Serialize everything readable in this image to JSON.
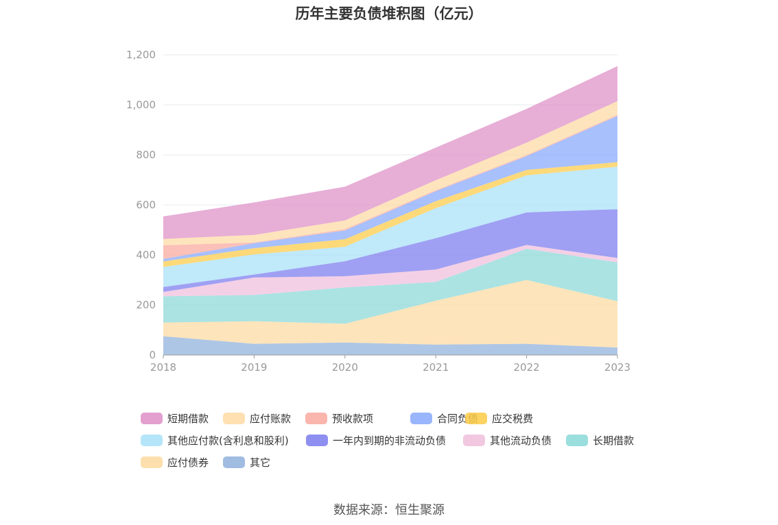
{
  "chart_data": {
    "type": "area",
    "stacked": true,
    "title": "历年主要负债堆积图（亿元）",
    "categories": [
      "2018",
      "2019",
      "2020",
      "2021",
      "2022",
      "2023"
    ],
    "ylim": [
      0,
      1200
    ],
    "yticks": [
      0,
      200,
      400,
      600,
      800,
      1000,
      1200
    ],
    "ytick_labels": [
      "0",
      "200",
      "400",
      "600",
      "800",
      "1,000",
      "1,200"
    ],
    "grid": true,
    "legend_position": "bottom",
    "series": [
      {
        "name": "其它",
        "color": "#8fb0dc",
        "values": [
          75,
          45,
          50,
          42,
          45,
          30
        ]
      },
      {
        "name": "应付债券",
        "color": "#fdd9a0",
        "values": [
          55,
          90,
          75,
          175,
          255,
          185
        ]
      },
      {
        "name": "长期借款",
        "color": "#8ad8d8",
        "values": [
          105,
          105,
          145,
          75,
          125,
          155
        ]
      },
      {
        "name": "其他流动负债",
        "color": "#f0bedc",
        "values": [
          17,
          70,
          45,
          50,
          15,
          18
        ]
      },
      {
        "name": "一年内到期的非流动负债",
        "color": "#7a7bef",
        "values": [
          20,
          12,
          60,
          125,
          130,
          195
        ]
      },
      {
        "name": "其他应付款(含利息和股利)",
        "color": "#a8e0f8",
        "values": [
          80,
          80,
          58,
          120,
          148,
          170
        ]
      },
      {
        "name": "应交税费",
        "color": "#fccb45",
        "values": [
          22,
          25,
          30,
          28,
          22,
          18
        ]
      },
      {
        "name": "合同负债",
        "color": "#87a8fb",
        "values": [
          10,
          20,
          35,
          40,
          55,
          185
        ]
      },
      {
        "name": "预收款项",
        "color": "#f9a89d",
        "values": [
          55,
          3,
          5,
          4,
          4,
          4
        ]
      },
      {
        "name": "应付账款",
        "color": "#fedaa3",
        "values": [
          25,
          30,
          35,
          40,
          50,
          55
        ]
      },
      {
        "name": "短期借款",
        "color": "#de8fc6",
        "values": [
          90,
          130,
          135,
          130,
          135,
          140
        ]
      }
    ]
  },
  "legend_order": [
    "短期借款",
    "应付账款",
    "预收款项",
    "合同负债",
    "应交税费",
    "其他应付款(含利息和股利)",
    "一年内到期的非流动负债",
    "其他流动负债",
    "长期借款",
    "应付债券",
    "其它"
  ],
  "source": "数据来源：恒生聚源"
}
